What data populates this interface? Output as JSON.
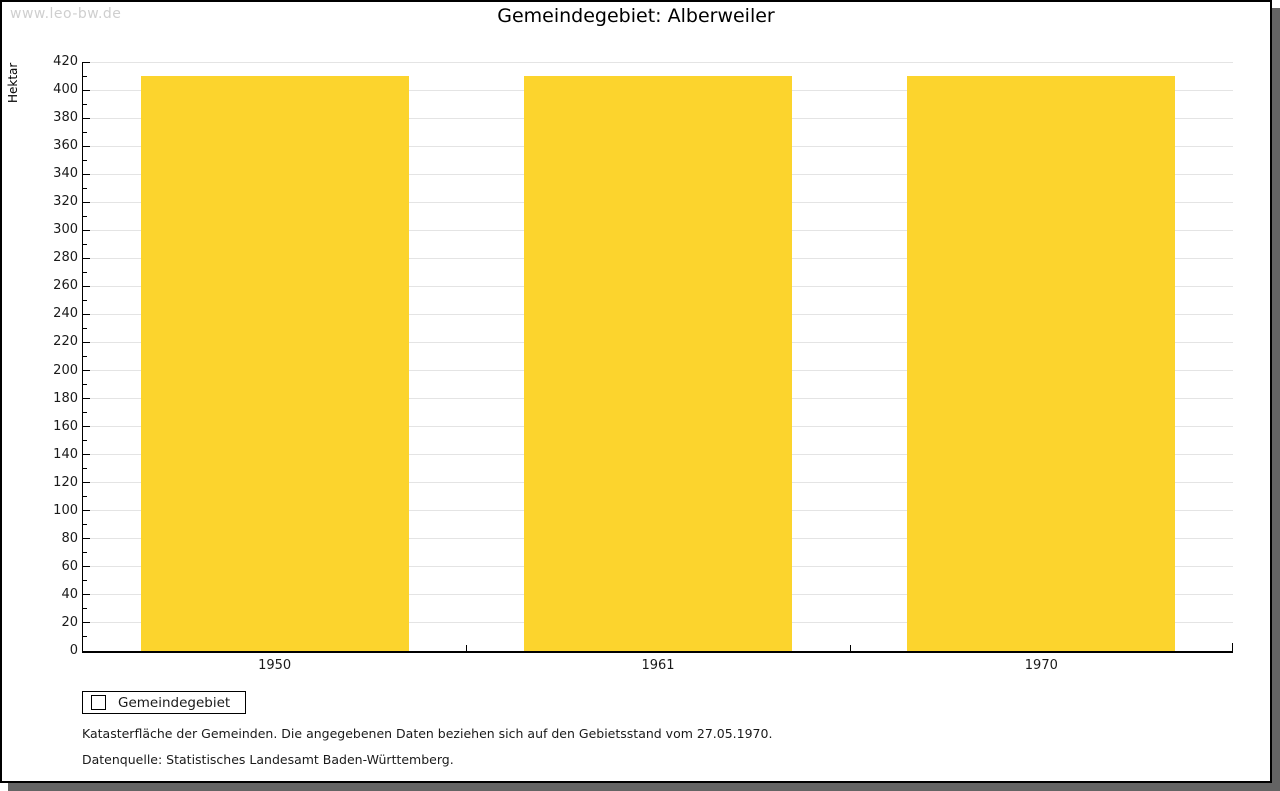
{
  "watermark": "www.leo-bw.de",
  "title": "Gemeindegebiet: Alberweiler",
  "legend": {
    "label": "Gemeindegebiet"
  },
  "footnotes": {
    "line1": "Katasterfläche der Gemeinden. Die angegebenen Daten beziehen sich auf den Gebietsstand vom 27.05.1970.",
    "line2": "Datenquelle: Statistisches Landesamt Baden-Württemberg."
  },
  "colors": {
    "bar": "#FCD42D",
    "grid": "#E4E4E4",
    "axis": "#000000",
    "watermark": "#CFCFCF",
    "shadow": "#646464"
  },
  "chart_data": {
    "type": "bar",
    "categories": [
      "1950",
      "1961",
      "1970"
    ],
    "series": [
      {
        "name": "Gemeindegebiet",
        "values": [
          410,
          410,
          410
        ]
      }
    ],
    "title": "Gemeindegebiet: Alberweiler",
    "xlabel": "",
    "ylabel": "Hektar",
    "ylim": [
      0,
      420
    ],
    "ytick_step": 20,
    "yminor_step": 10,
    "grid": true,
    "legend_position": "bottom-left",
    "bar_color": "#FCD42D",
    "bar_width_ratio": 0.7
  }
}
